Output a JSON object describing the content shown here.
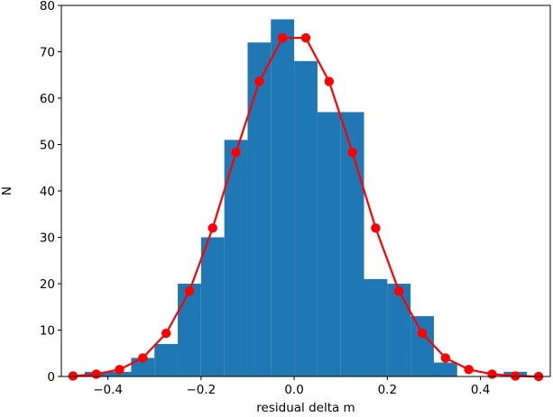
{
  "chart_data": {
    "type": "bar",
    "xlabel": "residual delta m",
    "ylabel": "N",
    "xlim": [
      -0.5,
      0.55
    ],
    "ylim": [
      0,
      80
    ],
    "xticks": [
      -0.4,
      -0.2,
      0.0,
      0.2,
      0.4
    ],
    "xtick_labels": [
      "−0.4",
      "−0.2",
      "0.0",
      "0.2",
      "0.4"
    ],
    "yticks": [
      0,
      10,
      20,
      30,
      40,
      50,
      60,
      70,
      80
    ],
    "ytick_labels": [
      "0",
      "10",
      "20",
      "30",
      "40",
      "50",
      "60",
      "70",
      "80"
    ],
    "grid": false,
    "histogram": {
      "color": "#1f77b4",
      "bin_width": 0.05,
      "bin_lefts": [
        -0.45,
        -0.4,
        -0.35,
        -0.3,
        -0.25,
        -0.2,
        -0.15,
        -0.1,
        -0.05,
        0.0,
        0.05,
        0.1,
        0.15,
        0.2,
        0.25,
        0.3,
        0.35,
        0.4,
        0.45
      ],
      "counts": [
        1,
        1,
        4,
        7,
        20,
        30,
        51,
        72,
        77,
        68,
        57,
        57,
        21,
        20,
        13,
        3,
        0,
        0,
        1
      ]
    },
    "fit_curve": {
      "color": "#ff0000",
      "x": [
        -0.475,
        -0.425,
        -0.375,
        -0.325,
        -0.275,
        -0.225,
        -0.175,
        -0.125,
        -0.075,
        -0.025,
        0.025,
        0.075,
        0.125,
        0.175,
        0.225,
        0.275,
        0.325,
        0.375,
        0.425,
        0.475,
        0.525
      ],
      "y": [
        0.1,
        0.5,
        1.5,
        4.0,
        9.3,
        18.4,
        32.0,
        48.3,
        63.6,
        73.0,
        73.0,
        63.6,
        48.3,
        32.0,
        18.4,
        9.3,
        4.0,
        1.5,
        0.5,
        0.1,
        0.0
      ]
    }
  }
}
